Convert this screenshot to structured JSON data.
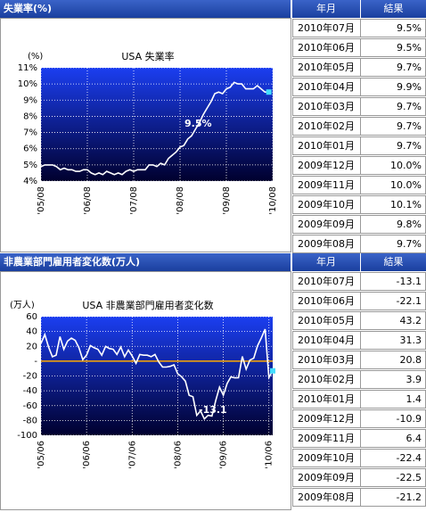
{
  "chart_data": [
    {
      "type": "line",
      "title": "USA 失業率",
      "y_label": "(%)",
      "annotation": "9.5%",
      "categories": [
        "'05/08",
        null,
        null,
        null,
        null,
        null,
        null,
        null,
        null,
        null,
        null,
        null,
        "'06/08",
        null,
        null,
        null,
        null,
        null,
        null,
        null,
        null,
        null,
        null,
        null,
        "'07/08",
        null,
        null,
        null,
        null,
        null,
        null,
        null,
        null,
        null,
        null,
        null,
        "'08/08",
        null,
        null,
        null,
        null,
        null,
        null,
        null,
        null,
        null,
        null,
        null,
        "'09/08",
        null,
        null,
        null,
        null,
        null,
        null,
        null,
        null,
        null,
        null,
        null,
        "'10/08"
      ],
      "series": [
        {
          "color": "#ffffff",
          "values": [
            4.9,
            5.0,
            5.0,
            5.0,
            4.9,
            4.7,
            4.8,
            4.7,
            4.7,
            4.6,
            4.6,
            4.7,
            4.7,
            4.5,
            4.4,
            4.5,
            4.4,
            4.6,
            4.5,
            4.4,
            4.5,
            4.4,
            4.6,
            4.7,
            4.6,
            4.7,
            4.7,
            4.7,
            5.0,
            5.0,
            4.9,
            5.1,
            5.0,
            5.4,
            5.6,
            5.8,
            6.1,
            6.2,
            6.6,
            6.8,
            7.2,
            7.6,
            8.1,
            8.5,
            8.9,
            9.4,
            9.5,
            9.4,
            9.7,
            9.8,
            10.1,
            10.0,
            10.0,
            9.7,
            9.7,
            9.7,
            9.9,
            9.7,
            9.5,
            9.5,
            null
          ]
        }
      ],
      "ylim": [
        4,
        11
      ],
      "yticks": [
        {
          "value": 4,
          "label": "4%"
        },
        {
          "value": 5,
          "label": "5%"
        },
        {
          "value": 6,
          "label": "6%"
        },
        {
          "value": 7,
          "label": "7%"
        },
        {
          "value": 8,
          "label": "8%"
        },
        {
          "value": 9,
          "label": "9%"
        },
        {
          "value": 10,
          "label": "10%"
        },
        {
          "value": 11,
          "label": "11%"
        }
      ],
      "grid": true
    },
    {
      "type": "line",
      "title": "USA 非農業部門雇用者変化数",
      "y_label": "(万人)",
      "annotation": "-13.1",
      "categories": [
        "'05/06",
        null,
        null,
        null,
        null,
        null,
        null,
        null,
        null,
        null,
        null,
        null,
        "'06/06",
        null,
        null,
        null,
        null,
        null,
        null,
        null,
        null,
        null,
        null,
        null,
        "'07/06",
        null,
        null,
        null,
        null,
        null,
        null,
        null,
        null,
        null,
        null,
        null,
        "'08/06",
        null,
        null,
        null,
        null,
        null,
        null,
        null,
        null,
        null,
        null,
        null,
        "'09/06",
        null,
        null,
        null,
        null,
        null,
        null,
        null,
        null,
        null,
        null,
        null,
        "'10/06",
        null
      ],
      "series": [
        {
          "color": "#ffffff",
          "values": [
            24,
            36,
            19,
            6,
            8,
            33,
            16,
            27,
            31,
            28,
            18,
            2,
            8,
            21,
            18,
            16,
            8,
            20,
            17,
            16,
            9,
            19,
            6,
            15,
            7,
            -3,
            9,
            8,
            8,
            6,
            9,
            -1,
            -8,
            -8,
            -7,
            -5,
            -17,
            -21,
            -27,
            -46,
            -48,
            -73,
            -67,
            -78,
            -73,
            -74,
            -53,
            -35,
            -46,
            -30,
            -21.2,
            -22.5,
            -22.4,
            6.4,
            -10.9,
            1.4,
            3.9,
            20.8,
            31.3,
            43.2,
            -22.1,
            -13.1
          ]
        }
      ],
      "ylim": [
        -100,
        60
      ],
      "yticks": [
        -100,
        -80,
        -60,
        -40,
        -20,
        {
          "value": 0,
          "label": "-"
        },
        20,
        40,
        60
      ],
      "grid": true
    }
  ],
  "panels": [
    {
      "title": "失業率(%)",
      "col_date": "年月",
      "col_value": "結果",
      "rows": [
        [
          "2010年07月",
          "9.5%"
        ],
        [
          "2010年06月",
          "9.5%"
        ],
        [
          "2010年05月",
          "9.7%"
        ],
        [
          "2010年04月",
          "9.9%"
        ],
        [
          "2010年03月",
          "9.7%"
        ],
        [
          "2010年02月",
          "9.7%"
        ],
        [
          "2010年01月",
          "9.7%"
        ],
        [
          "2009年12月",
          "10.0%"
        ],
        [
          "2009年11月",
          "10.0%"
        ],
        [
          "2009年10月",
          "10.1%"
        ],
        [
          "2009年09月",
          "9.8%"
        ],
        [
          "2009年08月",
          "9.7%"
        ]
      ]
    },
    {
      "title": "非農業部門雇用者変化数(万人)",
      "col_date": "年月",
      "col_value": "結果",
      "rows": [
        [
          "2010年07月",
          "-13.1"
        ],
        [
          "2010年06月",
          "-22.1"
        ],
        [
          "2010年05月",
          "43.2"
        ],
        [
          "2010年04月",
          "31.3"
        ],
        [
          "2010年03月",
          "20.8"
        ],
        [
          "2010年02月",
          "3.9"
        ],
        [
          "2010年01月",
          "1.4"
        ],
        [
          "2009年12月",
          "-10.9"
        ],
        [
          "2009年11月",
          "6.4"
        ],
        [
          "2009年10月",
          "-22.4"
        ],
        [
          "2009年09月",
          "-22.5"
        ],
        [
          "2009年08月",
          "-21.2"
        ]
      ]
    }
  ]
}
